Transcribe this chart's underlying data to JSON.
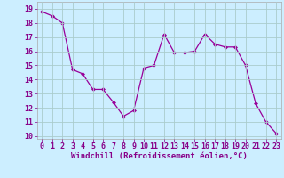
{
  "x": [
    0,
    1,
    2,
    3,
    4,
    5,
    6,
    7,
    8,
    9,
    10,
    11,
    12,
    13,
    14,
    15,
    16,
    17,
    18,
    19,
    20,
    21,
    22,
    23
  ],
  "y": [
    18.8,
    18.5,
    18.0,
    14.7,
    14.4,
    13.3,
    13.3,
    12.4,
    11.4,
    11.8,
    14.8,
    15.0,
    17.2,
    15.9,
    15.9,
    16.0,
    17.2,
    16.5,
    16.3,
    16.3,
    15.0,
    12.3,
    11.0,
    10.2
  ],
  "line_color": "#990099",
  "marker": "D",
  "marker_size": 2.0,
  "bg_color": "#cceeff",
  "grid_color": "#aacccc",
  "xlabel": "Windchill (Refroidissement éolien,°C)",
  "xlabel_fontsize": 6.5,
  "tick_fontsize": 6.0,
  "ylim": [
    9.8,
    19.5
  ],
  "xlim": [
    -0.5,
    23.5
  ],
  "yticks": [
    10,
    11,
    12,
    13,
    14,
    15,
    16,
    17,
    18,
    19
  ],
  "xticks": [
    0,
    1,
    2,
    3,
    4,
    5,
    6,
    7,
    8,
    9,
    10,
    11,
    12,
    13,
    14,
    15,
    16,
    17,
    18,
    19,
    20,
    21,
    22,
    23
  ],
  "label_color": "#880088",
  "spine_color": "#aaaaaa"
}
